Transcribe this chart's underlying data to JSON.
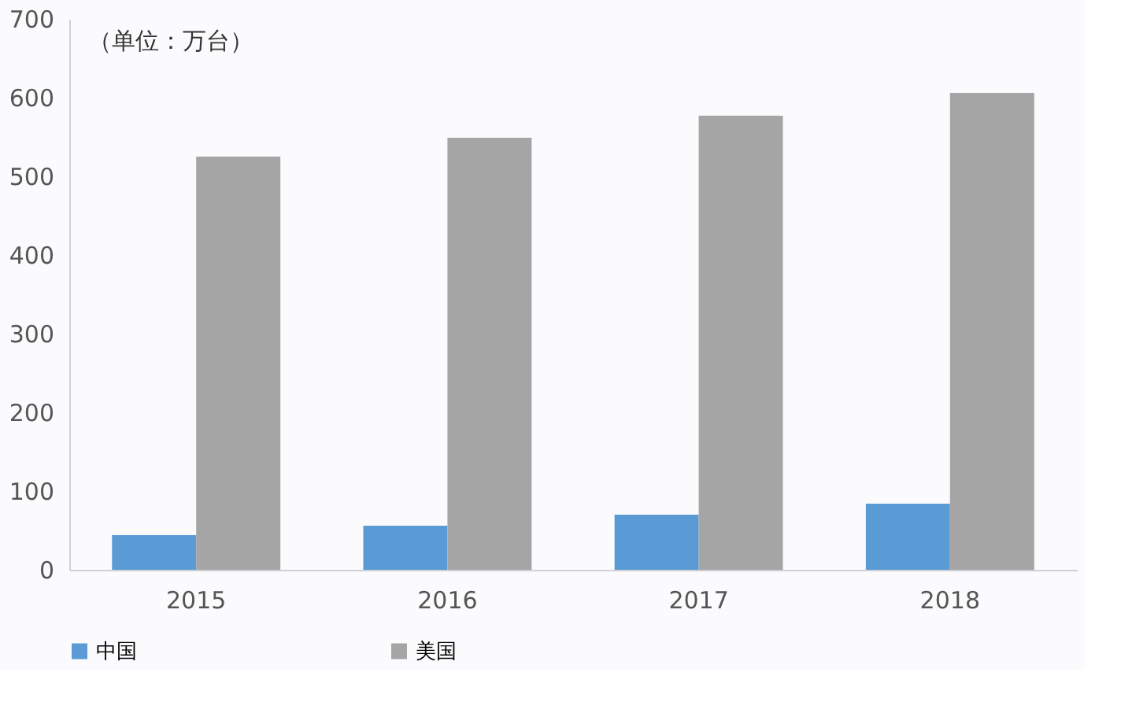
{
  "chart_data": {
    "type": "bar",
    "categories": [
      "2015",
      "2016",
      "2017",
      "2018"
    ],
    "series": [
      {
        "name": "中国",
        "color": "#5b9bd5",
        "values": [
          44,
          56,
          70,
          84
        ]
      },
      {
        "name": "美国",
        "color": "#a5a5a5",
        "values": [
          525,
          549,
          577,
          606
        ]
      }
    ],
    "ylim": [
      0,
      700
    ],
    "yticks": [
      0,
      100,
      200,
      300,
      400,
      500,
      600,
      700
    ],
    "annotations": [
      "（单位：万台）"
    ],
    "grid": false,
    "legend": "bottom"
  }
}
